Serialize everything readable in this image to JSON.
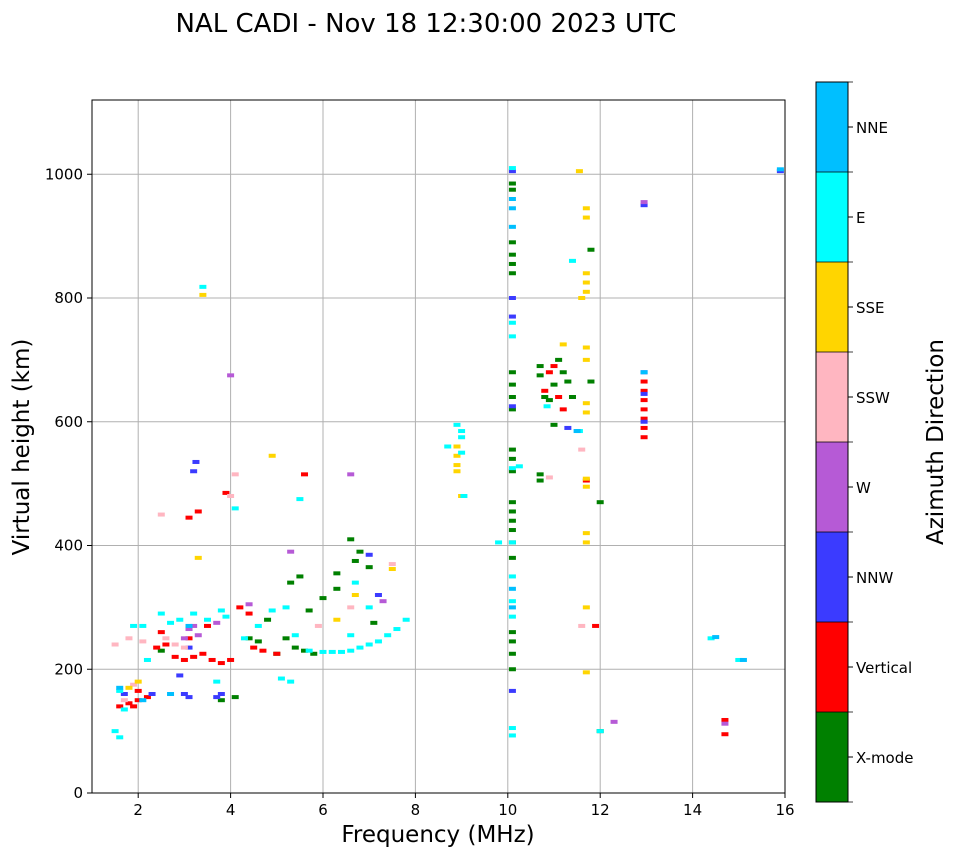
{
  "chart_data": {
    "type": "scatter",
    "title": "NAL CADI - Nov 18 12:30:00 2023 UTC",
    "xlabel": "Frequency (MHz)",
    "ylabel": "Virtual height (km)",
    "xlim": [
      1,
      16
    ],
    "ylim": [
      0,
      1120
    ],
    "xticks": [
      2,
      4,
      6,
      8,
      10,
      12,
      14,
      16
    ],
    "yticks": [
      0,
      200,
      400,
      600,
      800,
      1000
    ],
    "grid": true,
    "colorbar": {
      "label": "Azimuth Direction",
      "categories": [
        {
          "name": "X-mode",
          "color": "#008000"
        },
        {
          "name": "Vertical",
          "color": "#ff0000"
        },
        {
          "name": "NNW",
          "color": "#3b3bff"
        },
        {
          "name": "W",
          "color": "#b65ad6"
        },
        {
          "name": "SSW",
          "color": "#ffb6c1"
        },
        {
          "name": "SSE",
          "color": "#ffd500"
        },
        {
          "name": "E",
          "color": "#00ffff"
        },
        {
          "name": "NNE",
          "color": "#00bfff"
        }
      ]
    },
    "series": [
      {
        "name": "X-mode",
        "points": [
          [
            2.5,
            230
          ],
          [
            3.8,
            150
          ],
          [
            4.1,
            155
          ],
          [
            4.4,
            250
          ],
          [
            4.6,
            245
          ],
          [
            4.8,
            280
          ],
          [
            5.0,
            225
          ],
          [
            5.2,
            250
          ],
          [
            5.4,
            235
          ],
          [
            5.6,
            230
          ],
          [
            5.8,
            225
          ],
          [
            5.7,
            295
          ],
          [
            5.3,
            340
          ],
          [
            5.5,
            350
          ],
          [
            6.0,
            315
          ],
          [
            6.3,
            355
          ],
          [
            6.6,
            410
          ],
          [
            6.8,
            390
          ],
          [
            6.7,
            375
          ],
          [
            7.0,
            365
          ],
          [
            7.1,
            275
          ],
          [
            6.3,
            330
          ],
          [
            10.1,
            470
          ],
          [
            10.1,
            455
          ],
          [
            10.1,
            440
          ],
          [
            10.1,
            425
          ],
          [
            10.1,
            405
          ],
          [
            10.1,
            380
          ],
          [
            10.1,
            260
          ],
          [
            10.1,
            245
          ],
          [
            10.1,
            225
          ],
          [
            10.1,
            200
          ],
          [
            10.1,
            555
          ],
          [
            10.1,
            540
          ],
          [
            10.1,
            520
          ],
          [
            10.1,
            620
          ],
          [
            10.1,
            640
          ],
          [
            10.1,
            660
          ],
          [
            10.1,
            680
          ],
          [
            10.1,
            840
          ],
          [
            10.1,
            855
          ],
          [
            10.1,
            870
          ],
          [
            10.1,
            890
          ],
          [
            10.1,
            975
          ],
          [
            10.1,
            985
          ],
          [
            10.7,
            505
          ],
          [
            10.7,
            515
          ],
          [
            10.7,
            690
          ],
          [
            10.7,
            675
          ],
          [
            10.8,
            640
          ],
          [
            10.9,
            635
          ],
          [
            11.0,
            660
          ],
          [
            11.1,
            700
          ],
          [
            11.2,
            680
          ],
          [
            11.3,
            665
          ],
          [
            11.0,
            595
          ],
          [
            11.8,
            878
          ],
          [
            11.8,
            665
          ],
          [
            12.0,
            470
          ],
          [
            12.0,
            100
          ],
          [
            11.4,
            640
          ]
        ]
      },
      {
        "name": "Vertical",
        "points": [
          [
            1.6,
            140
          ],
          [
            1.8,
            145
          ],
          [
            2.0,
            150
          ],
          [
            2.2,
            155
          ],
          [
            2.4,
            235
          ],
          [
            2.6,
            240
          ],
          [
            2.8,
            220
          ],
          [
            3.0,
            215
          ],
          [
            3.2,
            220
          ],
          [
            3.4,
            225
          ],
          [
            3.6,
            215
          ],
          [
            3.8,
            210
          ],
          [
            4.0,
            215
          ],
          [
            3.1,
            445
          ],
          [
            3.3,
            455
          ],
          [
            3.9,
            485
          ],
          [
            4.2,
            300
          ],
          [
            4.4,
            290
          ],
          [
            4.5,
            235
          ],
          [
            4.7,
            230
          ],
          [
            5.0,
            225
          ],
          [
            5.6,
            515
          ],
          [
            2.0,
            165
          ],
          [
            1.9,
            140
          ],
          [
            2.5,
            260
          ],
          [
            3.1,
            250
          ],
          [
            3.5,
            270
          ],
          [
            10.8,
            650
          ],
          [
            10.9,
            680
          ],
          [
            11.0,
            690
          ],
          [
            11.1,
            640
          ],
          [
            11.2,
            620
          ],
          [
            11.7,
            505
          ],
          [
            11.9,
            270
          ],
          [
            12.95,
            575
          ],
          [
            12.95,
            590
          ],
          [
            12.95,
            605
          ],
          [
            12.95,
            620
          ],
          [
            12.95,
            635
          ],
          [
            12.95,
            650
          ],
          [
            12.95,
            665
          ],
          [
            14.7,
            95
          ],
          [
            14.7,
            118
          ]
        ]
      },
      {
        "name": "NNW",
        "points": [
          [
            1.7,
            160
          ],
          [
            2.3,
            160
          ],
          [
            3.0,
            160
          ],
          [
            3.1,
            155
          ],
          [
            3.7,
            155
          ],
          [
            3.8,
            160
          ],
          [
            3.1,
            235
          ],
          [
            2.9,
            190
          ],
          [
            3.2,
            520
          ],
          [
            3.25,
            535
          ],
          [
            7.0,
            385
          ],
          [
            7.2,
            320
          ],
          [
            10.1,
            1005
          ],
          [
            10.1,
            800
          ],
          [
            10.1,
            770
          ],
          [
            10.1,
            165
          ],
          [
            10.1,
            625
          ],
          [
            11.3,
            590
          ],
          [
            12.95,
            680
          ],
          [
            12.95,
            645
          ],
          [
            12.95,
            600
          ],
          [
            12.95,
            950
          ],
          [
            15.9,
            1005
          ]
        ]
      },
      {
        "name": "W",
        "points": [
          [
            3.0,
            250
          ],
          [
            3.1,
            265
          ],
          [
            3.2,
            270
          ],
          [
            3.3,
            255
          ],
          [
            4.0,
            675
          ],
          [
            5.3,
            390
          ],
          [
            6.6,
            515
          ],
          [
            12.3,
            115
          ],
          [
            14.7,
            112
          ],
          [
            7.3,
            310
          ],
          [
            4.4,
            305
          ],
          [
            3.7,
            275
          ],
          [
            12.95,
            955
          ]
        ]
      },
      {
        "name": "SSW",
        "points": [
          [
            1.5,
            240
          ],
          [
            1.8,
            250
          ],
          [
            1.9,
            175
          ],
          [
            2.1,
            245
          ],
          [
            2.5,
            450
          ],
          [
            2.6,
            250
          ],
          [
            2.8,
            240
          ],
          [
            3.0,
            235
          ],
          [
            4.0,
            480
          ],
          [
            4.1,
            515
          ],
          [
            6.6,
            300
          ],
          [
            10.9,
            510
          ],
          [
            11.6,
            555
          ],
          [
            11.6,
            270
          ],
          [
            7.5,
            370
          ],
          [
            5.9,
            270
          ],
          [
            1.7,
            150
          ]
        ]
      },
      {
        "name": "SSE",
        "points": [
          [
            3.4,
            805
          ],
          [
            3.3,
            380
          ],
          [
            4.9,
            545
          ],
          [
            6.3,
            280
          ],
          [
            6.7,
            320
          ],
          [
            7.5,
            362
          ],
          [
            8.9,
            560
          ],
          [
            8.9,
            545
          ],
          [
            8.9,
            530
          ],
          [
            8.9,
            520
          ],
          [
            9.0,
            480
          ],
          [
            11.55,
            1005
          ],
          [
            11.7,
            945
          ],
          [
            11.7,
            930
          ],
          [
            11.7,
            840
          ],
          [
            11.7,
            825
          ],
          [
            11.7,
            810
          ],
          [
            11.6,
            800
          ],
          [
            11.7,
            720
          ],
          [
            11.7,
            700
          ],
          [
            11.7,
            630
          ],
          [
            11.7,
            615
          ],
          [
            11.7,
            508
          ],
          [
            11.7,
            495
          ],
          [
            11.7,
            420
          ],
          [
            11.7,
            405
          ],
          [
            11.7,
            300
          ],
          [
            11.7,
            195
          ],
          [
            11.2,
            725
          ],
          [
            1.8,
            170
          ],
          [
            2.0,
            180
          ]
        ]
      },
      {
        "name": "E",
        "points": [
          [
            1.5,
            100
          ],
          [
            1.6,
            165
          ],
          [
            1.7,
            135
          ],
          [
            1.9,
            270
          ],
          [
            2.2,
            215
          ],
          [
            2.5,
            290
          ],
          [
            2.7,
            275
          ],
          [
            2.9,
            280
          ],
          [
            3.2,
            290
          ],
          [
            3.5,
            280
          ],
          [
            3.8,
            295
          ],
          [
            3.9,
            285
          ],
          [
            4.1,
            460
          ],
          [
            4.3,
            250
          ],
          [
            4.6,
            270
          ],
          [
            4.9,
            295
          ],
          [
            5.2,
            300
          ],
          [
            5.5,
            475
          ],
          [
            5.4,
            255
          ],
          [
            5.1,
            185
          ],
          [
            5.3,
            180
          ],
          [
            5.7,
            230
          ],
          [
            6.0,
            228
          ],
          [
            6.2,
            228
          ],
          [
            6.4,
            228
          ],
          [
            6.6,
            230
          ],
          [
            6.8,
            235
          ],
          [
            7.0,
            240
          ],
          [
            7.2,
            245
          ],
          [
            7.4,
            255
          ],
          [
            7.6,
            265
          ],
          [
            7.8,
            280
          ],
          [
            6.6,
            255
          ],
          [
            7.0,
            300
          ],
          [
            6.7,
            340
          ],
          [
            3.4,
            818
          ],
          [
            3.7,
            180
          ],
          [
            1.6,
            90
          ],
          [
            2.1,
            270
          ],
          [
            8.9,
            595
          ],
          [
            9.0,
            585
          ],
          [
            9.0,
            575
          ],
          [
            8.7,
            560
          ],
          [
            9.0,
            550
          ],
          [
            9.05,
            480
          ],
          [
            9.8,
            405
          ],
          [
            10.1,
            1010
          ],
          [
            10.1,
            760
          ],
          [
            10.1,
            738
          ],
          [
            10.1,
            525
          ],
          [
            10.1,
            405
          ],
          [
            10.1,
            350
          ],
          [
            10.1,
            310
          ],
          [
            10.1,
            105
          ],
          [
            10.1,
            93
          ],
          [
            10.1,
            285
          ],
          [
            10.25,
            528
          ],
          [
            10.85,
            625
          ],
          [
            11.4,
            860
          ],
          [
            11.55,
            585
          ],
          [
            14.4,
            250
          ],
          [
            15.0,
            215
          ],
          [
            12.0,
            100
          ]
        ]
      },
      {
        "name": "NNE",
        "points": [
          [
            1.6,
            170
          ],
          [
            2.1,
            150
          ],
          [
            2.7,
            160
          ],
          [
            3.1,
            270
          ],
          [
            10.1,
            960
          ],
          [
            10.1,
            945
          ],
          [
            10.1,
            915
          ],
          [
            10.1,
            330
          ],
          [
            10.1,
            300
          ],
          [
            11.5,
            585
          ],
          [
            12.95,
            680
          ],
          [
            14.5,
            252
          ],
          [
            15.1,
            215
          ],
          [
            15.9,
            1008
          ]
        ]
      }
    ]
  }
}
